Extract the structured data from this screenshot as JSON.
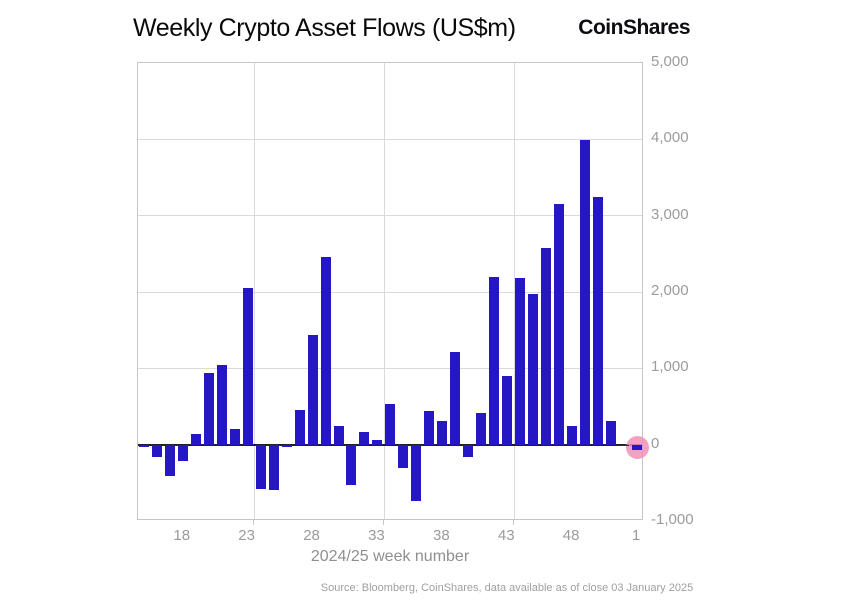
{
  "header": {
    "title": "Weekly Crypto Asset Flows (US$m)",
    "logo": "CoinShares"
  },
  "footer": {
    "source": "Source: Bloomberg, CoinShares, data available as of close 03 January 2025"
  },
  "chart_data": {
    "type": "bar",
    "title": "Weekly Crypto Asset Flows (US$m)",
    "xlabel": "2024/25 week number",
    "ylabel": "",
    "ylim": [
      -1000,
      5000
    ],
    "grid": true,
    "bar_color": "#2617c4",
    "highlight_color": "#f191b9",
    "categories": [
      "15",
      "16",
      "17",
      "18",
      "19",
      "20",
      "21",
      "22",
      "23",
      "24",
      "25",
      "26",
      "27",
      "28",
      "29",
      "30",
      "31",
      "32",
      "33",
      "34",
      "35",
      "36",
      "37",
      "38",
      "39",
      "40",
      "41",
      "42",
      "43",
      "44",
      "45",
      "46",
      "47",
      "48",
      "49",
      "50",
      "51",
      "52",
      "1"
    ],
    "values": [
      -35,
      -160,
      -405,
      -220,
      140,
      935,
      1040,
      210,
      2050,
      -575,
      -590,
      -35,
      450,
      1440,
      2455,
      250,
      -525,
      170,
      65,
      530,
      -305,
      -735,
      435,
      315,
      1220,
      -165,
      415,
      2200,
      895,
      2180,
      1970,
      2575,
      3150,
      250,
      3985,
      3240,
      305,
      -5,
      -75
    ],
    "highlighted_category": "1",
    "x_tick_labels": [
      "18",
      "23",
      "28",
      "33",
      "38",
      "43",
      "48",
      "1"
    ],
    "x_tick_weeks": [
      18,
      23,
      28,
      33,
      38,
      43,
      48,
      53
    ],
    "x_gridline_weeks": [
      23.5,
      33.5,
      43.5
    ],
    "y_ticks": [
      5000,
      4000,
      3000,
      2000,
      1000,
      0,
      -1000
    ],
    "y_tick_labels": [
      "5,000",
      "4,000",
      "3,000",
      "2,000",
      "1,000",
      "0",
      "-1,000"
    ]
  }
}
